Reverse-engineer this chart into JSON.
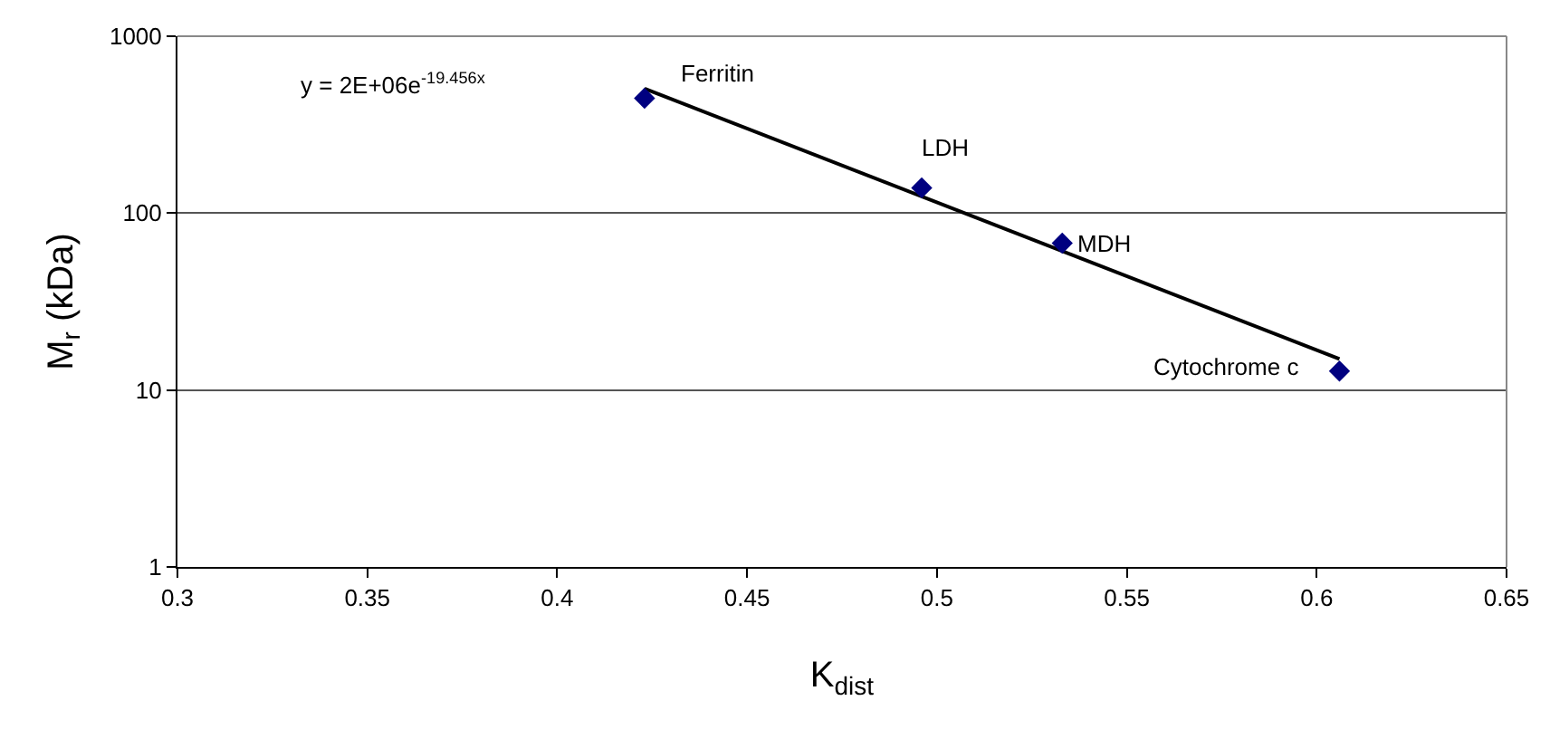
{
  "chart_data": {
    "type": "scatter",
    "xlabel": "K$_{dist}$",
    "ylabel": "M$_{r}$ (kDa)",
    "x": [
      0.423,
      0.496,
      0.533,
      0.606
    ],
    "series": [
      {
        "color": "#000080",
        "marker": "diamond",
        "values": [
          446,
          139,
          67.6,
          12.8
        ]
      },
      {
        "type": "line",
        "color": "#000000",
        "x": [
          0.423,
          0.606
        ],
        "values": [
          505,
          15
        ]
      }
    ],
    "xlim": [
      0.3,
      0.65
    ],
    "xticks": [
      0.3,
      0.35,
      0.4,
      0.45,
      0.5,
      0.55,
      0.6,
      0.65
    ],
    "ylim": [
      1,
      1000
    ],
    "yticks": [
      1,
      10,
      100,
      1000
    ],
    "log": true,
    "grid": "y",
    "annotations": [
      "y = 2E+06e$^{-19.456x}$",
      {
        "text": "Ferritin",
        "x": 0.423,
        "y": 446
      },
      {
        "text": "LDH",
        "x": 0.496,
        "y": 139
      },
      {
        "text": "MDH",
        "x": 0.533,
        "y": 67.6
      },
      {
        "text": "Cytochrome c",
        "x": 0.606,
        "y": 12.8
      }
    ]
  }
}
